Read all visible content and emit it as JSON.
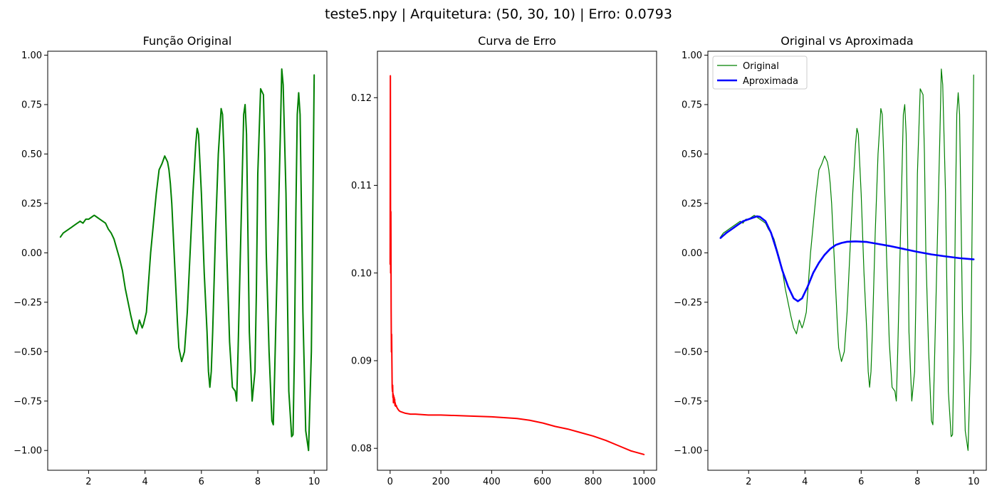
{
  "figure": {
    "suptitle": "teste5.npy | Arquitetura: (50, 30, 10) | Erro: 0.0793"
  },
  "chart_data": [
    {
      "type": "line",
      "title": "Função Original",
      "xlabel": "",
      "ylabel": "",
      "xlim": [
        0.55,
        10.45
      ],
      "ylim": [
        -1.1,
        1.02
      ],
      "xticks": [
        2,
        4,
        6,
        8,
        10
      ],
      "yticks": [
        -1.0,
        -0.75,
        -0.5,
        -0.25,
        0.0,
        0.25,
        0.5,
        0.75,
        1.0
      ],
      "ytick_labels": [
        "−1.00",
        "−0.75",
        "−0.50",
        "−0.25",
        "0.00",
        "0.25",
        "0.50",
        "0.75",
        "1.00"
      ],
      "grid": false,
      "series": [
        {
          "name": "",
          "color": "#008000",
          "width": 2,
          "x": [
            1.0,
            1.1,
            1.2,
            1.3,
            1.4,
            1.5,
            1.6,
            1.7,
            1.8,
            1.9,
            2.0,
            2.1,
            2.2,
            2.3,
            2.4,
            2.5,
            2.6,
            2.7,
            2.8,
            2.9,
            3.0,
            3.1,
            3.2,
            3.3,
            3.4,
            3.5,
            3.6,
            3.7,
            3.8,
            3.9,
            3.95,
            4.0,
            4.05,
            4.1,
            4.15,
            4.2,
            4.3,
            4.4,
            4.5,
            4.6,
            4.7,
            4.8,
            4.85,
            4.9,
            4.95,
            5.0,
            5.05,
            5.1,
            5.15,
            5.2,
            5.3,
            5.4,
            5.5,
            5.6,
            5.7,
            5.8,
            5.85,
            5.9,
            6.0,
            6.1,
            6.2,
            6.25,
            6.3,
            6.35,
            6.4,
            6.5,
            6.6,
            6.7,
            6.75,
            6.8,
            6.9,
            7.0,
            7.1,
            7.2,
            7.25,
            7.3,
            7.4,
            7.5,
            7.55,
            7.6,
            7.65,
            7.7,
            7.8,
            7.9,
            7.95,
            8.0,
            8.1,
            8.2,
            8.25,
            8.3,
            8.4,
            8.5,
            8.55,
            8.6,
            8.7,
            8.8,
            8.85,
            8.9,
            9.0,
            9.05,
            9.1,
            9.2,
            9.25,
            9.3,
            9.35,
            9.4,
            9.45,
            9.5,
            9.6,
            9.7,
            9.8,
            9.9,
            10.0
          ],
          "y": [
            0.08,
            0.1,
            0.11,
            0.12,
            0.13,
            0.14,
            0.15,
            0.16,
            0.15,
            0.17,
            0.17,
            0.18,
            0.19,
            0.18,
            0.17,
            0.16,
            0.15,
            0.12,
            0.1,
            0.07,
            0.02,
            -0.03,
            -0.09,
            -0.18,
            -0.25,
            -0.32,
            -0.38,
            -0.41,
            -0.34,
            -0.38,
            -0.36,
            -0.33,
            -0.3,
            -0.2,
            -0.1,
            0.0,
            0.15,
            0.3,
            0.42,
            0.45,
            0.49,
            0.46,
            0.42,
            0.35,
            0.25,
            0.1,
            -0.05,
            -0.2,
            -0.35,
            -0.48,
            -0.55,
            -0.5,
            -0.3,
            0.0,
            0.3,
            0.55,
            0.63,
            0.6,
            0.3,
            -0.1,
            -0.4,
            -0.6,
            -0.68,
            -0.6,
            -0.4,
            0.1,
            0.5,
            0.73,
            0.7,
            0.5,
            0.0,
            -0.45,
            -0.68,
            -0.7,
            -0.75,
            -0.5,
            0.1,
            0.7,
            0.75,
            0.6,
            0.1,
            -0.4,
            -0.75,
            -0.6,
            -0.2,
            0.4,
            0.83,
            0.8,
            0.5,
            0.0,
            -0.5,
            -0.85,
            -0.87,
            -0.6,
            0.0,
            0.6,
            0.93,
            0.85,
            0.3,
            -0.2,
            -0.7,
            -0.93,
            -0.92,
            -0.5,
            0.2,
            0.7,
            0.81,
            0.7,
            -0.3,
            -0.9,
            -1.0,
            -0.5,
            0.9
          ]
        }
      ]
    },
    {
      "type": "line",
      "title": "Curva de Erro",
      "xlabel": "",
      "ylabel": "",
      "xlim": [
        -50,
        1050
      ],
      "ylim": [
        0.0775,
        0.1253
      ],
      "xticks": [
        0,
        200,
        400,
        600,
        800,
        1000
      ],
      "yticks": [
        0.08,
        0.09,
        0.1,
        0.11,
        0.12
      ],
      "ytick_labels": [
        "0.08",
        "0.09",
        "0.10",
        "0.11",
        "0.12"
      ],
      "grid": false,
      "series": [
        {
          "name": "",
          "color": "#ff0000",
          "width": 2,
          "x": [
            0,
            1,
            2,
            3,
            4,
            5,
            6,
            7,
            8,
            9,
            10,
            11,
            12,
            13,
            14,
            15,
            16,
            17,
            18,
            19,
            20,
            22,
            24,
            26,
            28,
            30,
            35,
            40,
            50,
            60,
            80,
            100,
            150,
            200,
            300,
            400,
            500,
            550,
            600,
            650,
            700,
            750,
            800,
            850,
            900,
            950,
            1000
          ],
          "y": [
            0.101,
            0.1225,
            0.1,
            0.107,
            0.096,
            0.091,
            0.093,
            0.09,
            0.087,
            0.0865,
            0.0872,
            0.0858,
            0.0862,
            0.0852,
            0.086,
            0.0855,
            0.0858,
            0.0852,
            0.0856,
            0.0849,
            0.0852,
            0.0848,
            0.0849,
            0.0847,
            0.0846,
            0.0845,
            0.0843,
            0.0842,
            0.0841,
            0.084,
            0.0839,
            0.0839,
            0.0838,
            0.0838,
            0.0837,
            0.0836,
            0.0834,
            0.0832,
            0.0829,
            0.0825,
            0.0822,
            0.0818,
            0.0814,
            0.0809,
            0.0803,
            0.0797,
            0.0793
          ]
        }
      ]
    },
    {
      "type": "line",
      "title": "Original vs Aproximada",
      "xlabel": "",
      "ylabel": "",
      "xlim": [
        0.55,
        10.45
      ],
      "ylim": [
        -1.1,
        1.02
      ],
      "xticks": [
        2,
        4,
        6,
        8,
        10
      ],
      "yticks": [
        -1.0,
        -0.75,
        -0.5,
        -0.25,
        0.0,
        0.25,
        0.5,
        0.75,
        1.0
      ],
      "ytick_labels": [
        "−1.00",
        "−0.75",
        "−0.50",
        "−0.25",
        "0.00",
        "0.25",
        "0.50",
        "0.75",
        "1.00"
      ],
      "grid": false,
      "legend": "top-left",
      "series": [
        {
          "name": "Original",
          "color": "#008000",
          "width": 1.2,
          "x": [
            1.0,
            1.1,
            1.2,
            1.3,
            1.4,
            1.5,
            1.6,
            1.7,
            1.8,
            1.9,
            2.0,
            2.1,
            2.2,
            2.3,
            2.4,
            2.5,
            2.6,
            2.7,
            2.8,
            2.9,
            3.0,
            3.1,
            3.2,
            3.3,
            3.4,
            3.5,
            3.6,
            3.7,
            3.8,
            3.9,
            3.95,
            4.0,
            4.05,
            4.1,
            4.15,
            4.2,
            4.3,
            4.4,
            4.5,
            4.6,
            4.7,
            4.8,
            4.85,
            4.9,
            4.95,
            5.0,
            5.05,
            5.1,
            5.15,
            5.2,
            5.3,
            5.4,
            5.5,
            5.6,
            5.7,
            5.8,
            5.85,
            5.9,
            6.0,
            6.1,
            6.2,
            6.25,
            6.3,
            6.35,
            6.4,
            6.5,
            6.6,
            6.7,
            6.75,
            6.8,
            6.9,
            7.0,
            7.1,
            7.2,
            7.25,
            7.3,
            7.4,
            7.5,
            7.55,
            7.6,
            7.65,
            7.7,
            7.8,
            7.9,
            7.95,
            8.0,
            8.1,
            8.2,
            8.25,
            8.3,
            8.4,
            8.5,
            8.55,
            8.6,
            8.7,
            8.8,
            8.85,
            8.9,
            9.0,
            9.05,
            9.1,
            9.2,
            9.25,
            9.3,
            9.35,
            9.4,
            9.45,
            9.5,
            9.6,
            9.7,
            9.8,
            9.9,
            10.0
          ],
          "y": [
            0.08,
            0.1,
            0.11,
            0.12,
            0.13,
            0.14,
            0.15,
            0.16,
            0.15,
            0.17,
            0.17,
            0.18,
            0.19,
            0.18,
            0.17,
            0.16,
            0.15,
            0.12,
            0.1,
            0.07,
            0.02,
            -0.03,
            -0.09,
            -0.18,
            -0.25,
            -0.32,
            -0.38,
            -0.41,
            -0.34,
            -0.38,
            -0.36,
            -0.33,
            -0.3,
            -0.2,
            -0.1,
            0.0,
            0.15,
            0.3,
            0.42,
            0.45,
            0.49,
            0.46,
            0.42,
            0.35,
            0.25,
            0.1,
            -0.05,
            -0.2,
            -0.35,
            -0.48,
            -0.55,
            -0.5,
            -0.3,
            0.0,
            0.3,
            0.55,
            0.63,
            0.6,
            0.3,
            -0.1,
            -0.4,
            -0.6,
            -0.68,
            -0.6,
            -0.4,
            0.1,
            0.5,
            0.73,
            0.7,
            0.5,
            0.0,
            -0.45,
            -0.68,
            -0.7,
            -0.75,
            -0.5,
            0.1,
            0.7,
            0.75,
            0.6,
            0.1,
            -0.4,
            -0.75,
            -0.6,
            -0.2,
            0.4,
            0.83,
            0.8,
            0.5,
            0.0,
            -0.5,
            -0.85,
            -0.87,
            -0.6,
            0.0,
            0.6,
            0.93,
            0.85,
            0.3,
            -0.2,
            -0.7,
            -0.93,
            -0.92,
            -0.5,
            0.2,
            0.7,
            0.81,
            0.7,
            -0.3,
            -0.9,
            -1.0,
            -0.5,
            0.9
          ]
        },
        {
          "name": "Aproximada",
          "color": "#0000ff",
          "width": 2.6,
          "x": [
            1.0,
            1.2,
            1.4,
            1.6,
            1.8,
            2.0,
            2.2,
            2.3,
            2.4,
            2.6,
            2.8,
            3.0,
            3.2,
            3.4,
            3.6,
            3.75,
            3.9,
            4.1,
            4.3,
            4.5,
            4.7,
            4.9,
            5.1,
            5.3,
            5.5,
            5.8,
            6.2,
            6.6,
            7.0,
            7.5,
            8.0,
            8.5,
            9.0,
            9.5,
            10.0
          ],
          "y": [
            0.075,
            0.1,
            0.12,
            0.14,
            0.16,
            0.17,
            0.18,
            0.185,
            0.182,
            0.16,
            0.1,
            0.01,
            -0.09,
            -0.17,
            -0.23,
            -0.245,
            -0.23,
            -0.17,
            -0.1,
            -0.05,
            -0.01,
            0.02,
            0.04,
            0.05,
            0.056,
            0.058,
            0.055,
            0.045,
            0.035,
            0.02,
            0.005,
            -0.008,
            -0.018,
            -0.027,
            -0.033
          ]
        }
      ]
    }
  ]
}
